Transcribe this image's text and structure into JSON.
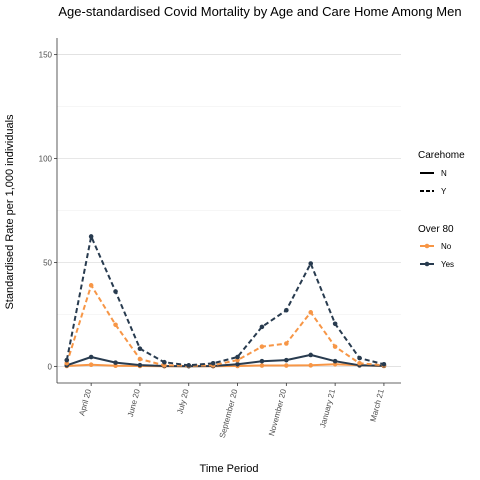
{
  "chart_data": {
    "type": "line",
    "title": "Age-standardised Covid Mortality by Age and Care Home Among Men",
    "xlabel": "Time Period",
    "ylabel": "Standardised Rate per 1,000 individuals",
    "x_tick_labels": [
      "April 20",
      "June 20",
      "July 20",
      "September 20",
      "November 20",
      "January 21",
      "March 21"
    ],
    "x_tick_positions": [
      2,
      4,
      6,
      8,
      10,
      12,
      14
    ],
    "xlim": [
      0.6,
      14.7
    ],
    "y_ticks": [
      0,
      50,
      100,
      150
    ],
    "ylim": [
      -8,
      158
    ],
    "grid": true,
    "x": [
      1,
      2,
      3,
      4,
      5,
      6,
      7,
      8,
      9,
      10,
      11,
      12,
      13,
      14
    ],
    "series": [
      {
        "carehome": "N",
        "over80": "No",
        "color": "#F79646",
        "linestyle": "solid",
        "values": [
          0.2,
          0.8,
          0.3,
          0.2,
          0.1,
          0.1,
          0.1,
          0.2,
          0.4,
          0.4,
          0.5,
          1.0,
          0.5,
          0.2
        ]
      },
      {
        "carehome": "N",
        "over80": "Yes",
        "color": "#283B4F",
        "linestyle": "solid",
        "values": [
          0.5,
          4.5,
          1.8,
          0.6,
          0.2,
          0.1,
          0.2,
          1.0,
          2.5,
          3.0,
          5.5,
          2.5,
          0.5,
          0.3
        ]
      },
      {
        "carehome": "Y",
        "over80": "No",
        "color": "#F79646",
        "linestyle": "dashed",
        "values": [
          1.5,
          39,
          20,
          3.5,
          0.5,
          0.3,
          0.5,
          3.0,
          9.5,
          11,
          26,
          9.5,
          1.5,
          0.5
        ]
      },
      {
        "carehome": "Y",
        "over80": "Yes",
        "color": "#283B4F",
        "linestyle": "dashed",
        "values": [
          3.0,
          62.5,
          36,
          8.5,
          2.0,
          0.5,
          1.5,
          4.5,
          19,
          27,
          49.5,
          20.5,
          4.0,
          1.0
        ]
      }
    ],
    "legend": {
      "position": "right",
      "carehome_title": "Carehome",
      "carehome_items": [
        {
          "label": "N",
          "linestyle": "solid"
        },
        {
          "label": "Y",
          "linestyle": "dashed"
        }
      ],
      "over80_title": "Over 80",
      "over80_items": [
        {
          "label": "No",
          "color": "#F79646"
        },
        {
          "label": "Yes",
          "color": "#283B4F"
        }
      ]
    }
  }
}
